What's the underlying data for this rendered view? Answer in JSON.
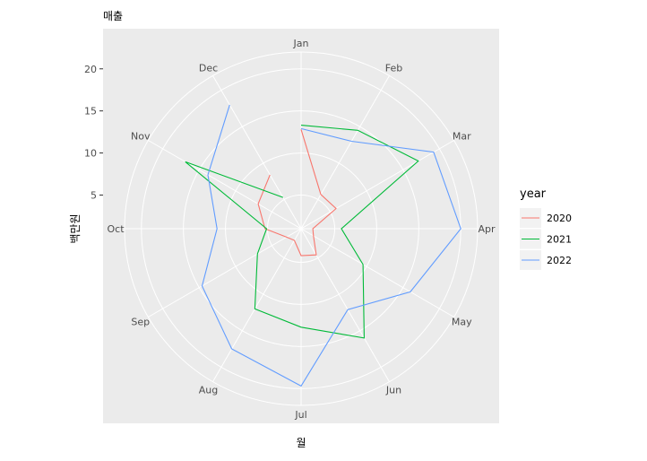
{
  "chart_data": {
    "type": "polar-line",
    "title": "매출",
    "x_label": "월",
    "y_label": "백만원",
    "categories": [
      "Jan",
      "Feb",
      "Mar",
      "Apr",
      "May",
      "Jun",
      "Jul",
      "Aug",
      "Sep",
      "Oct",
      "Nov",
      "Dec"
    ],
    "ylim": [
      1,
      22
    ],
    "yticks": [
      5,
      10,
      15,
      20
    ],
    "grid": true,
    "legend_title": "year",
    "legend_position": "right",
    "series": [
      {
        "name": "2020",
        "color": "#F8766D",
        "values": [
          12.8,
          5.7,
          5.8,
          2.4,
          2.7,
          4.6,
          4.2,
          2.6,
          3,
          5.3,
          6.9,
          8.4
        ]
      },
      {
        "name": "2021",
        "color": "#00BA38",
        "values": [
          13.3,
          14.5,
          17.1,
          5.8,
          9.5,
          16,
          12.7,
          12,
          7,
          5.1,
          16.9,
          5.3
        ]
      },
      {
        "name": "2022",
        "color": "#619CFF",
        "values": [
          12.9,
          13,
          19.2,
          20,
          16,
          12.1,
          19.7,
          17.5,
          14.6,
          11,
          13.8,
          18
        ]
      }
    ]
  }
}
